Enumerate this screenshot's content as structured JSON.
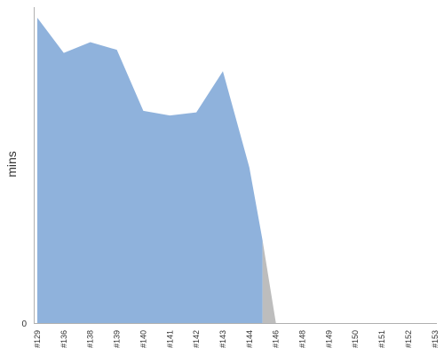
{
  "chart_data": {
    "type": "area",
    "title": "",
    "xlabel": "",
    "ylabel": "mins",
    "categories": [
      "#129",
      "#136",
      "#138",
      "#139",
      "#140",
      "#141",
      "#142",
      "#143",
      "#144",
      "#146",
      "#148",
      "#149",
      "#150",
      "#151",
      "#152",
      "#153"
    ],
    "y_ticks": [
      "0"
    ],
    "ylim": [
      0,
      100
    ],
    "grid": false,
    "legend": "none",
    "series": [
      {
        "color": "#8fb2dc",
        "points": [
          {
            "x": "#129",
            "y": 100
          },
          {
            "x": "#136",
            "y": 88.5
          },
          {
            "x": "#138",
            "y": 92
          },
          {
            "x": "#139",
            "y": 89.5
          },
          {
            "x": "#140",
            "y": 69.5
          },
          {
            "x": "#141",
            "y": 68
          },
          {
            "x": "#142",
            "y": 69
          },
          {
            "x": "#143",
            "y": 82.5
          },
          {
            "x": "#144",
            "y": 51
          },
          {
            "x": 8.5,
            "y": 27
          },
          {
            "x": 8.5,
            "y": 0
          }
        ]
      },
      {
        "color": "#bdbdbd",
        "points": [
          {
            "x": 8.5,
            "y": 27
          },
          {
            "x": "#146",
            "y": 0
          },
          {
            "x": 8.5,
            "y": 0
          }
        ]
      }
    ]
  }
}
